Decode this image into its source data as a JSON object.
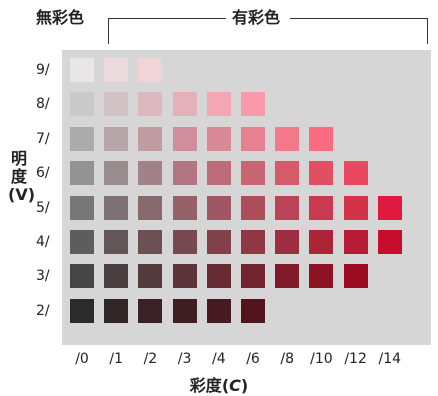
{
  "header": {
    "achromatic_label": "無彩色",
    "chromatic_label": "有彩色"
  },
  "y_axis": {
    "label_line1": "明",
    "label_line2": "度",
    "label_line3": "(V)"
  },
  "x_axis": {
    "title_main": "彩度",
    "title_open": "(",
    "title_symbol": "C",
    "title_close": ")"
  },
  "value_labels": [
    "9/",
    "8/",
    "7/",
    "6/",
    "5/",
    "4/",
    "3/",
    "2/"
  ],
  "chroma_labels": [
    "/0",
    "/1",
    "/2",
    "/3",
    "/4",
    "/6",
    "/8",
    "/10",
    "/12",
    "/14"
  ],
  "swatch_rows": [
    {
      "value": "9/",
      "colors": [
        "#e8e6e7",
        "#ebdadd",
        "#f0d4d8"
      ]
    },
    {
      "value": "8/",
      "colors": [
        "#c9c9c9",
        "#d1c2c5",
        "#dcb8be",
        "#e4b0b9",
        "#f3a7b4",
        "#f89aaa"
      ]
    },
    {
      "value": "7/",
      "colors": [
        "#ababab",
        "#b7a6a9",
        "#c29ba2",
        "#d08f9a",
        "#d98896",
        "#e7808f",
        "#f3788a",
        "#fb6c80"
      ]
    },
    {
      "value": "6/",
      "colors": [
        "#939393",
        "#998c8e",
        "#a28289",
        "#b27581",
        "#bc6d79",
        "#c96473",
        "#d55a6a",
        "#e04f62",
        "#ea4860"
      ]
    },
    {
      "value": "5/",
      "colors": [
        "#777777",
        "#7e7173",
        "#886a6e",
        "#956067",
        "#a05663",
        "#ad4f5b",
        "#ba4456",
        "#c83a4f",
        "#d33148",
        "#e0193e"
      ]
    },
    {
      "value": "4/",
      "colors": [
        "#5d5d5d",
        "#625659",
        "#6c5053",
        "#784850",
        "#82404a",
        "#913744",
        "#9d2e3f",
        "#ab2536",
        "#b71c34",
        "#c80c2c"
      ]
    },
    {
      "value": "3/",
      "colors": [
        "#454545",
        "#4a3f41",
        "#523a3d",
        "#5c3439",
        "#662d35",
        "#72252f",
        "#7f1b29",
        "#8b1324",
        "#9a0a20"
      ]
    },
    {
      "value": "2/",
      "colors": [
        "#2b2b2b",
        "#302627",
        "#382225",
        "#3e1e22",
        "#461a20",
        "#52141c"
      ]
    }
  ]
}
